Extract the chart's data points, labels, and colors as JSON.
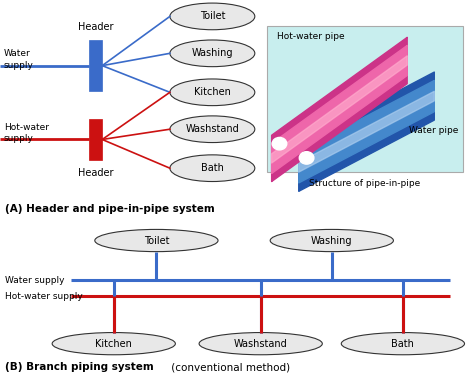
{
  "bg_color": "#ffffff",
  "blue": "#3a6bc9",
  "red": "#cc1111",
  "ellipse_fc": "#e8e8e8",
  "ellipse_ec": "#333333",
  "pipe_photo_bg": "#c8eeee",
  "section_a_outlets": [
    "Toilet",
    "Washing",
    "Kitchen",
    "Washstand",
    "Bath"
  ],
  "section_a_label_bold": "(A) Header and pipe-in-pipe system",
  "section_b_label_bold": "(B) Branch piping system",
  "section_b_label_normal": " (conventional method)",
  "branch_top": [
    [
      "Toilet",
      3.3
    ],
    [
      "Washing",
      7.0
    ]
  ],
  "branch_bot": [
    [
      "Kitchen",
      2.4
    ],
    [
      "Washstand",
      5.5
    ],
    [
      "Bath",
      8.5
    ]
  ],
  "photo_text_hot": "Hot-water pipe",
  "photo_text_water": "Water pipe",
  "photo_text_struct": "Structure of pipe-in-pipe"
}
